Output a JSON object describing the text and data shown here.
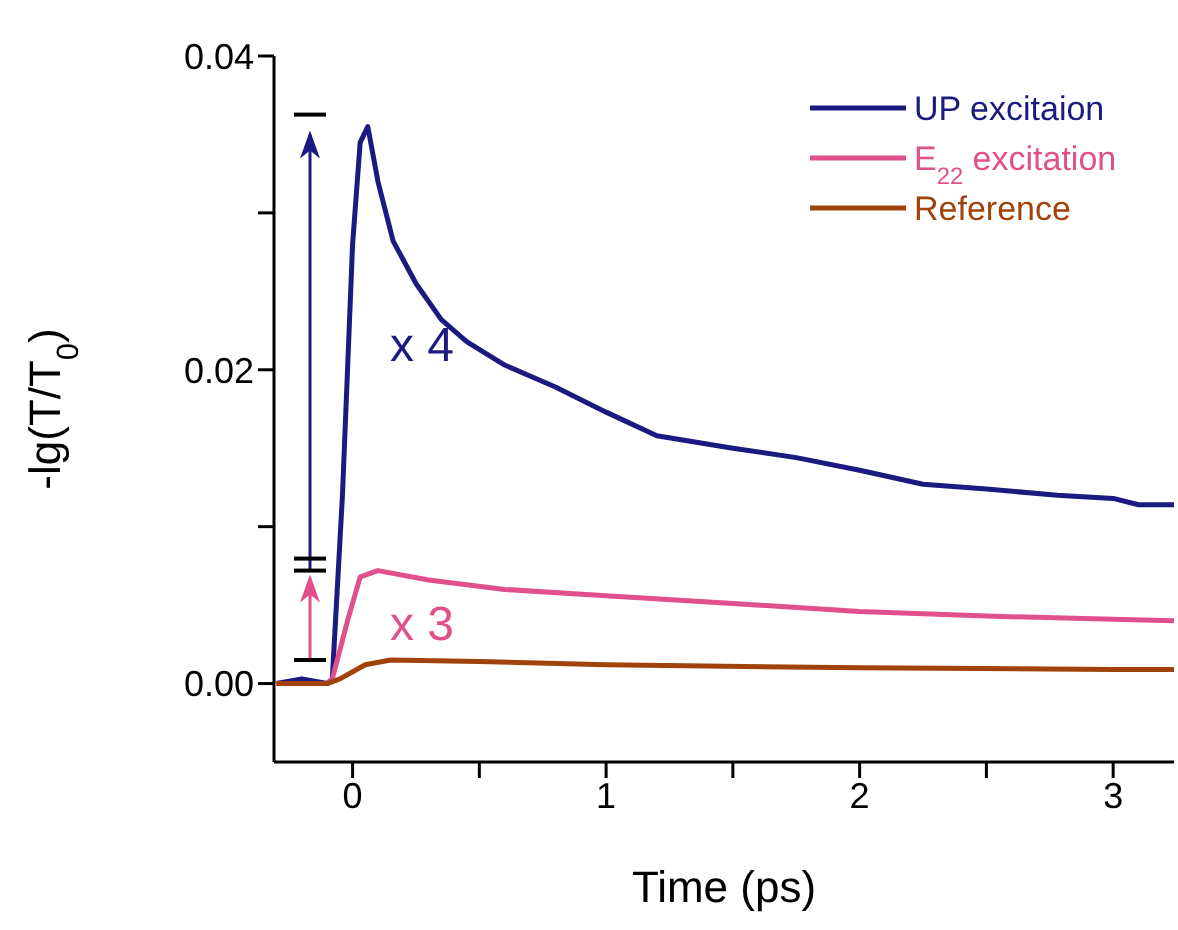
{
  "chart_data": {
    "type": "line",
    "xlabel": "Time (ps)",
    "ylabel": "-lg(T/T$_{0}$)",
    "xlim": [
      -0.31,
      3.24
    ],
    "ylim": [
      -0.005,
      0.04
    ],
    "xticks": [
      0,
      {
        "value": 0.5,
        "label": null
      },
      1,
      {
        "value": 1.5,
        "label": null
      },
      2,
      {
        "value": 2.5,
        "label": null
      },
      3
    ],
    "yticks": [
      {
        "value": 0,
        "label": "0.00"
      },
      {
        "value": 0.01,
        "label": null
      },
      {
        "value": 0.02,
        "label": "0.02"
      },
      {
        "value": 0.03,
        "label": null
      },
      {
        "value": 0.04,
        "label": "0.04"
      }
    ],
    "legend": "top right",
    "marker": "none",
    "line_style": "solid",
    "annotations": [
      "x 4",
      "x 3"
    ],
    "series": [
      {
        "name": "UP excitaion",
        "color": "#1a1a80",
        "x": [
          -0.3,
          -0.2,
          -0.1,
          -0.08,
          -0.04,
          0,
          0.03,
          0.06,
          0.1,
          0.16,
          0.25,
          0.35,
          0.45,
          0.6,
          0.8,
          1.0,
          1.2,
          1.5,
          1.75,
          2.0,
          2.25,
          2.5,
          2.78,
          3.0,
          3.1,
          3.24
        ],
        "values": [
          0,
          0.0003,
          0,
          0.0003,
          0.012,
          0.028,
          0.0345,
          0.0355,
          0.032,
          0.0282,
          0.0255,
          0.0232,
          0.0218,
          0.0203,
          0.0189,
          0.0173,
          0.0158,
          0.015,
          0.0144,
          0.0136,
          0.0127,
          0.0124,
          0.012,
          0.0118,
          0.0114,
          0.0114
        ]
      },
      {
        "name": "E$_{22}$ excitation",
        "color": "#e0508a",
        "x": [
          -0.3,
          -0.1,
          -0.08,
          -0.02,
          0.03,
          0.1,
          0.3,
          0.6,
          1.0,
          1.5,
          2.0,
          2.5,
          3.0,
          3.24
        ],
        "values": [
          0,
          0,
          0.0003,
          0.004,
          0.0068,
          0.0072,
          0.0066,
          0.006,
          0.0056,
          0.0051,
          0.0046,
          0.0043,
          0.0041,
          0.004
        ]
      },
      {
        "name": "Reference",
        "color": "#a0420a",
        "x": [
          -0.3,
          -0.1,
          -0.05,
          0.05,
          0.15,
          0.5,
          1.0,
          2.0,
          3.0,
          3.24
        ],
        "values": [
          0,
          0,
          0.0003,
          0.0012,
          0.0015,
          0.0014,
          0.0012,
          0.001,
          0.0009,
          0.0009
        ]
      }
    ]
  }
}
